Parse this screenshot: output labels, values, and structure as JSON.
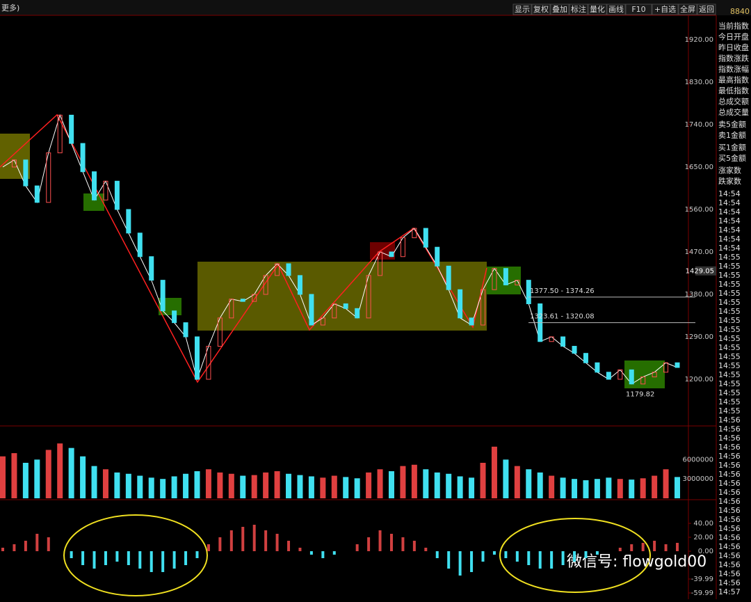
{
  "toolbar": {
    "left": "更多)",
    "buttons": [
      "显示",
      "复权",
      "叠加",
      "标注",
      "量化",
      "画线",
      "F10",
      "+自选",
      "全屏",
      "返回"
    ],
    "code": "8840"
  },
  "side_panel": {
    "labels": [
      "当前指数",
      "今日开盘",
      "昨日收盘",
      "指数涨跌",
      "指数涨幅",
      "最高指数",
      "最低指数",
      "总成交额",
      "总成交量",
      "卖5金额",
      "卖1金额",
      "买1金额",
      "买5金额",
      "涨家数",
      "跌家数"
    ],
    "times": [
      "14:54",
      "14:54",
      "14:54",
      "14:54",
      "14:54",
      "14:54",
      "14:54",
      "14:55",
      "14:55",
      "14:55",
      "14:55",
      "14:55",
      "14:55",
      "14:55",
      "14:55",
      "14:55",
      "14:55",
      "14:55",
      "14:55",
      "14:55",
      "14:55",
      "14:55",
      "14:55",
      "14:55",
      "14:55",
      "14:56",
      "14:56",
      "14:56",
      "14:56",
      "14:56",
      "14:56",
      "14:56",
      "14:56",
      "14:56",
      "14:56",
      "14:56",
      "14:56",
      "14:56",
      "14:56",
      "14:56",
      "14:56",
      "14:56",
      "14:56",
      "14:56",
      "14:57"
    ]
  },
  "watermark": "微信号: flowgold00",
  "chart_data": [
    {
      "type": "line",
      "color": "#ffffff",
      "values": [
        1650,
        1665,
        1610,
        1575,
        1680,
        1760,
        1700,
        1640,
        1580,
        1620,
        1560,
        1510,
        1460,
        1410,
        1345,
        1320,
        1290,
        1200,
        1270,
        1330,
        1370,
        1365,
        1380,
        1420,
        1445,
        1420,
        1380,
        1315,
        1330,
        1360,
        1350,
        1330,
        1420,
        1470,
        1460,
        1500,
        1520,
        1480,
        1440,
        1390,
        1330,
        1315,
        1390,
        1435,
        1400,
        1410,
        1360,
        1280,
        1290,
        1270,
        1255,
        1235,
        1215,
        1200,
        1220,
        1190,
        1205,
        1215,
        1235,
        1225
      ],
      "ylim": [
        1101.1,
        1971.6
      ],
      "yticks": [
        {
          "value": 1920,
          "label": "1920.00"
        },
        {
          "value": 1830,
          "label": "1830.00"
        },
        {
          "value": 1740,
          "label": "1740.00"
        },
        {
          "value": 1650,
          "label": "1650.00"
        },
        {
          "value": 1560,
          "label": "1560.00"
        },
        {
          "value": 1470,
          "label": "1470.00"
        },
        {
          "value": 1380,
          "label": "1380.00"
        },
        {
          "value": 1290,
          "label": "1290.00"
        },
        {
          "value": 1200,
          "label": "1200.00"
        }
      ],
      "current": {
        "value": 1429.05,
        "label": "1429.05"
      },
      "levels": [
        {
          "value": 1374.26,
          "label": "1377.50 - 1374.26"
        },
        {
          "value": 1320.08,
          "label": "1323.61 - 1320.08"
        }
      ],
      "low": {
        "value": 1179.82,
        "label": "1179.82"
      }
    },
    {
      "type": "bar",
      "ylim": [
        0,
        11000000
      ],
      "yticks": [
        3000000,
        6000000
      ],
      "values": [
        6500000,
        7000000,
        5500000,
        6000000,
        7500000,
        8500000,
        7800000,
        6500000,
        5000000,
        4500000,
        4000000,
        3800000,
        3500000,
        3200000,
        3000000,
        3400000,
        3800000,
        4200000,
        4500000,
        4000000,
        3800000,
        3500000,
        3600000,
        4000000,
        4200000,
        3800000,
        3600000,
        3400000,
        3200000,
        3500000,
        3300000,
        3100000,
        4000000,
        4500000,
        4200000,
        5000000,
        5200000,
        4500000,
        4000000,
        3800000,
        3400000,
        3200000,
        5500000,
        8000000,
        6000000,
        5000000,
        4500000,
        4000000,
        3500000,
        3200000,
        3000000,
        2800000,
        3000000,
        3200000,
        3000000,
        2900000,
        3100000,
        3500000,
        4500000,
        3300000
      ]
    },
    {
      "type": "bar",
      "ylim": [
        -68,
        72
      ],
      "yticks": [
        {
          "value": 40,
          "label": "40.00"
        },
        {
          "value": 20,
          "label": "20.00"
        },
        {
          "value": 0,
          "label": "0.00"
        },
        {
          "value": -39.99,
          "label": "-39.99"
        },
        {
          "value": -59.99,
          "label": "-59.99"
        }
      ],
      "values": [
        5,
        10,
        15,
        25,
        20,
        0,
        -10,
        -20,
        -25,
        -20,
        -15,
        -20,
        -25,
        -30,
        -30,
        -25,
        -20,
        -10,
        10,
        20,
        30,
        35,
        38,
        30,
        25,
        15,
        5,
        -5,
        -10,
        -5,
        0,
        10,
        20,
        30,
        25,
        20,
        15,
        5,
        -10,
        -25,
        -35,
        -30,
        -15,
        -5,
        -10,
        -15,
        -20,
        -25,
        -25,
        -20,
        -15,
        -10,
        -5,
        0,
        5,
        10,
        12,
        15,
        10,
        12
      ]
    }
  ]
}
